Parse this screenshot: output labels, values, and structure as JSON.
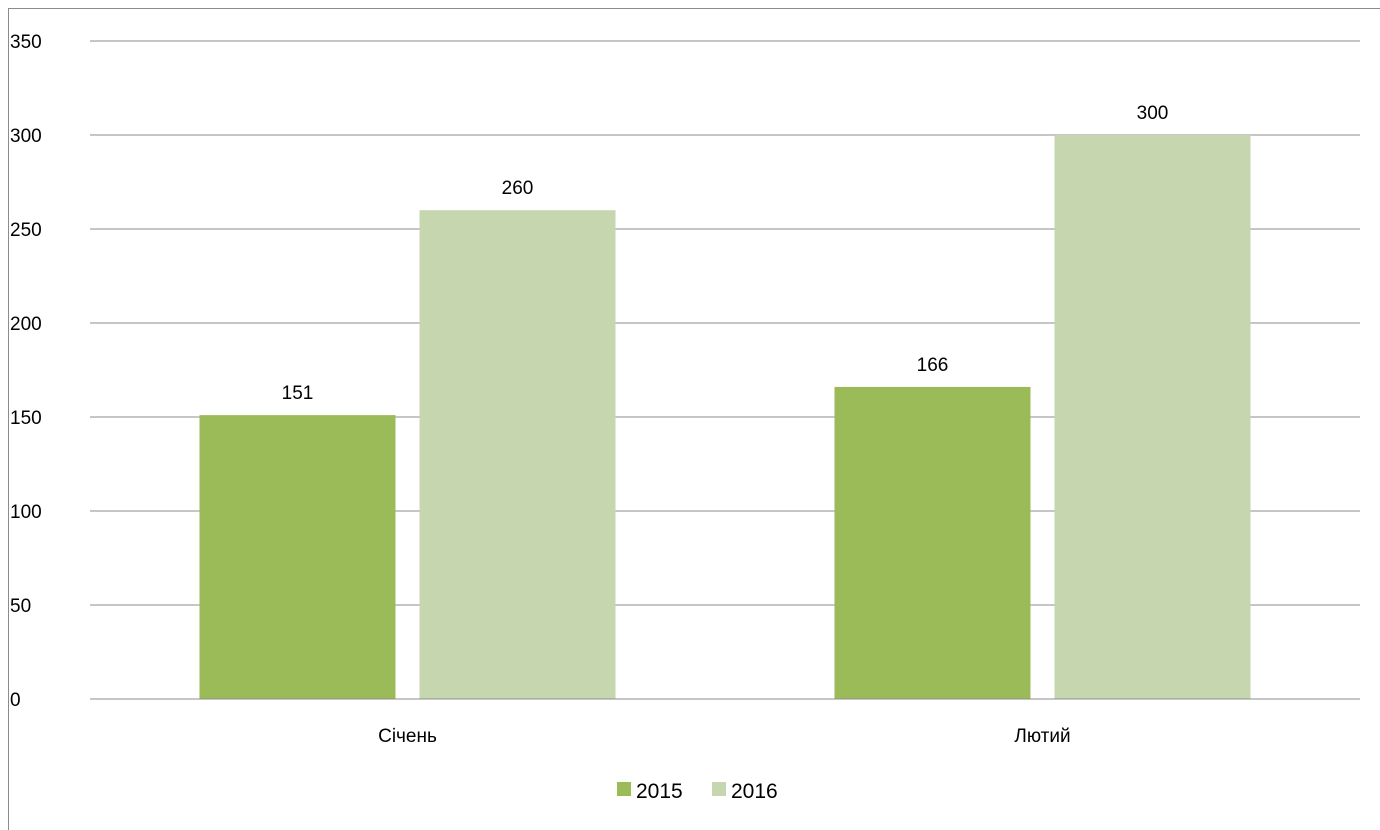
{
  "chart_data": {
    "type": "bar",
    "categories": [
      "Січень",
      "Лютий"
    ],
    "series": [
      {
        "name": "2015",
        "values": [
          151,
          166
        ],
        "color": "#9bbb59"
      },
      {
        "name": "2016",
        "values": [
          260,
          300
        ],
        "color": "#c6d7b0"
      }
    ],
    "ylim": [
      0,
      350
    ],
    "yticks": [
      "0",
      "50",
      "100",
      "150",
      "200",
      "250",
      "300",
      "350"
    ],
    "grid": true,
    "legend": "bottom",
    "title": "",
    "xlabel": "",
    "ylabel": ""
  }
}
